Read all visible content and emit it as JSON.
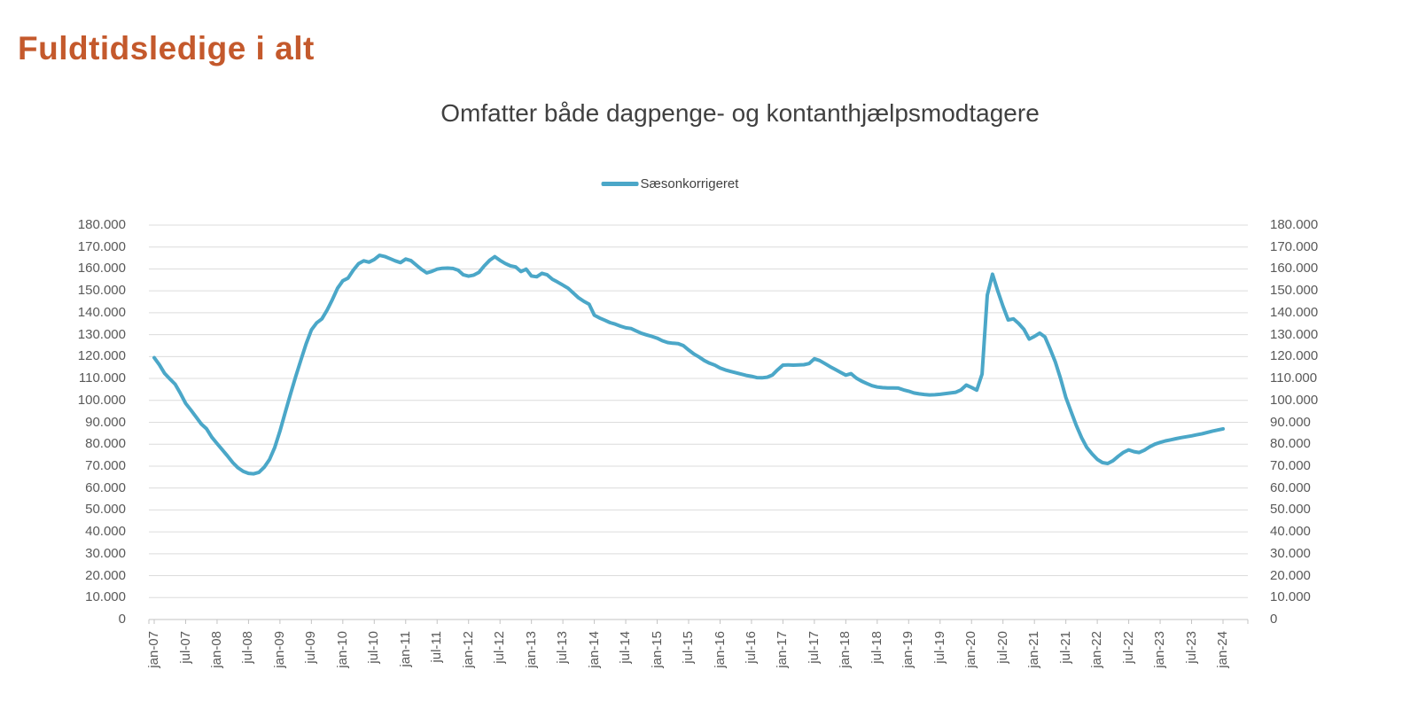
{
  "page": {
    "title": "Fuldtidsledige i alt"
  },
  "chart": {
    "subtitle": "Omfatter både dagpenge- og kontanthjælpsmodtagere",
    "legend": {
      "label": "Sæsonkorrigeret"
    },
    "colors": {
      "title": "#C4592C",
      "subtitle": "#404040",
      "series_line": "#4BA7C8",
      "gridline": "#DCDCDC",
      "axis_line": "#C3C3C3",
      "tick_label": "#595959"
    }
  },
  "chart_data": {
    "type": "line",
    "title": "Omfatter både dagpenge- og kontanthjælpsmodtagere",
    "legend_position": "top-center",
    "grid": "horizontal",
    "y_axis": {
      "min": 0,
      "max": 180000,
      "step": 10000,
      "sides": [
        "left",
        "right"
      ],
      "tick_labels": [
        "0",
        "10.000",
        "20.000",
        "30.000",
        "40.000",
        "50.000",
        "60.000",
        "70.000",
        "80.000",
        "90.000",
        "100.000",
        "110.000",
        "120.000",
        "130.000",
        "140.000",
        "150.000",
        "160.000",
        "170.000",
        "180.000"
      ]
    },
    "x_axis": {
      "frequency": "monthly",
      "start": "jan-07",
      "end": "jan-24",
      "label_rotation": -90,
      "tick_labels": [
        "jan-07",
        "jul-07",
        "jan-08",
        "jul-08",
        "jan-09",
        "jul-09",
        "jan-10",
        "jul-10",
        "jan-11",
        "jul-11",
        "jan-12",
        "jul-12",
        "jan-13",
        "jul-13",
        "jan-14",
        "jul-14",
        "jan-15",
        "jul-15",
        "jan-16",
        "jul-16",
        "jan-17",
        "jul-17",
        "jan-18",
        "jul-18",
        "jan-19",
        "jul-19",
        "jan-20",
        "jul-20",
        "jan-21",
        "jul-21",
        "jan-22",
        "jul-22",
        "jan-23",
        "jul-23",
        "jan-24"
      ]
    },
    "series": [
      {
        "name": "Sæsonkorrigeret",
        "color": "#4BA7C8",
        "values": [
          119500,
          116200,
          112300,
          109800,
          107400,
          103200,
          98600,
          95600,
          92400,
          89200,
          87000,
          83200,
          80300,
          77400,
          74600,
          71600,
          69200,
          67600,
          66700,
          66500,
          67200,
          69500,
          73000,
          78500,
          86000,
          94500,
          102800,
          110800,
          118400,
          125800,
          132200,
          135400,
          137200,
          141200,
          146000,
          151200,
          154600,
          155800,
          159400,
          162400,
          163700,
          163100,
          164300,
          166200,
          165700,
          164700,
          163700,
          162900,
          164500,
          163800,
          161800,
          159800,
          158200,
          158900,
          159900,
          160300,
          160400,
          160200,
          159400,
          157300,
          156700,
          157200,
          158500,
          161400,
          163900,
          165600,
          163900,
          162500,
          161400,
          160900,
          158800,
          159900,
          156800,
          156400,
          158000,
          157300,
          155300,
          154000,
          152600,
          151200,
          149000,
          146800,
          145200,
          143900,
          138900,
          137600,
          136600,
          135500,
          134800,
          133900,
          133100,
          132800,
          131700,
          130600,
          129900,
          129200,
          128400,
          127200,
          126400,
          126100,
          125900,
          125000,
          123000,
          121200,
          119800,
          118200,
          117000,
          116100,
          114800,
          113900,
          113200,
          112600,
          112000,
          111400,
          111000,
          110400,
          110300,
          110600,
          111600,
          114000,
          116100,
          116200,
          116100,
          116200,
          116300,
          116800,
          119000,
          118200,
          116800,
          115400,
          114100,
          112800,
          111500,
          112200,
          110200,
          108800,
          107700,
          106700,
          106100,
          105800,
          105700,
          105700,
          105600,
          104800,
          104200,
          103400,
          103000,
          102700,
          102500,
          102600,
          102800,
          103100,
          103400,
          103700,
          104800,
          107000,
          105900,
          104700,
          112000,
          148000,
          157600,
          150000,
          143000,
          136700,
          137200,
          135100,
          132400,
          128000,
          129200,
          130700,
          129000,
          123500,
          117500,
          110000,
          101400,
          94800,
          88500,
          83000,
          78500,
          75600,
          73100,
          71600,
          71200,
          72500,
          74500,
          76300,
          77400,
          76600,
          76200,
          77300,
          78800,
          80000,
          80800,
          81500,
          82000,
          82500,
          83000,
          83400,
          83800,
          84300,
          84800,
          85400,
          86000,
          86500,
          87000
        ]
      }
    ]
  }
}
